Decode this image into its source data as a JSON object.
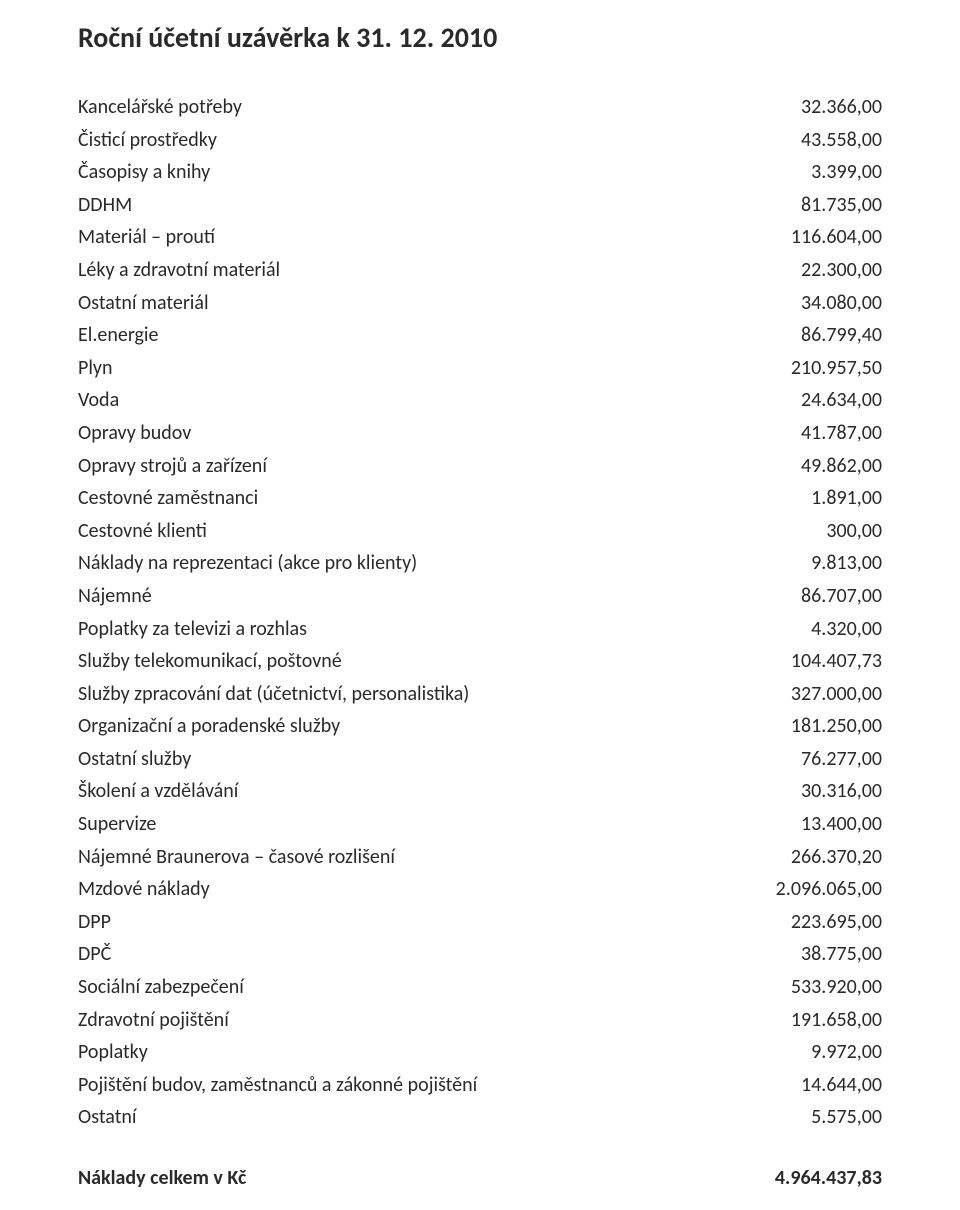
{
  "title": "Roční účetní uzávěrka k 31. 12. 2010",
  "rows": [
    {
      "label": "Kancelářské potřeby",
      "value": "32.366,00"
    },
    {
      "label": "Čisticí prostředky",
      "value": "43.558,00"
    },
    {
      "label": "Časopisy a knihy",
      "value": "3.399,00"
    },
    {
      "label": "DDHM",
      "value": "81.735,00"
    },
    {
      "label": "Materiál – proutí",
      "value": "116.604,00"
    },
    {
      "label": "Léky a zdravotní materiál",
      "value": "22.300,00"
    },
    {
      "label": "Ostatní materiál",
      "value": "34.080,00"
    },
    {
      "label": "El.energie",
      "value": "86.799,40"
    },
    {
      "label": "Plyn",
      "value": "210.957,50"
    },
    {
      "label": "Voda",
      "value": "24.634,00"
    },
    {
      "label": "Opravy budov",
      "value": "41.787,00"
    },
    {
      "label": "Opravy strojů a zařízení",
      "value": "49.862,00"
    },
    {
      "label": "Cestovné zaměstnanci",
      "value": "1.891,00"
    },
    {
      "label": "Cestovné klienti",
      "value": "300,00"
    },
    {
      "label": "Náklady na reprezentaci (akce pro klienty)",
      "value": "9.813,00"
    },
    {
      "label": "Nájemné",
      "value": "86.707,00"
    },
    {
      "label": "Poplatky za televizi a rozhlas",
      "value": "4.320,00"
    },
    {
      "label": "Služby telekomunikací, poštovné",
      "value": "104.407,73"
    },
    {
      "label": "Služby zpracování dat (účetnictví, personalistika)",
      "value": "327.000,00"
    },
    {
      "label": "Organizační a poradenské služby",
      "value": "181.250,00"
    },
    {
      "label": "Ostatní služby",
      "value": "76.277,00"
    },
    {
      "label": "Školení a vzdělávání",
      "value": "30.316,00"
    },
    {
      "label": "Supervize",
      "value": "13.400,00"
    },
    {
      "label": "Nájemné Braunerova – časové rozlišení",
      "value": "266.370,20"
    },
    {
      "label": "Mzdové náklady",
      "value": "2.096.065,00"
    },
    {
      "label": "DPP",
      "value": "223.695,00"
    },
    {
      "label": "DPČ",
      "value": "38.775,00"
    },
    {
      "label": "Sociální zabezpečení",
      "value": "533.920,00"
    },
    {
      "label": "Zdravotní pojištění",
      "value": "191.658,00"
    },
    {
      "label": "Poplatky",
      "value": "9.972,00"
    },
    {
      "label": "Pojištění budov, zaměstnanců a zákonné pojištění",
      "value": "14.644,00"
    },
    {
      "label": "Ostatní",
      "value": "5.575,00"
    }
  ],
  "total": {
    "label": "Náklady  celkem  v Kč",
    "value": "4.964.437,83"
  },
  "styling": {
    "font_family": "Calibri",
    "title_fontsize": 28,
    "body_fontsize": 20,
    "text_color": "#2a2a2a",
    "background_color": "#ffffff",
    "line_height": 1.63,
    "columns": [
      {
        "name": "label",
        "align": "left"
      },
      {
        "name": "value",
        "align": "right"
      }
    ]
  }
}
